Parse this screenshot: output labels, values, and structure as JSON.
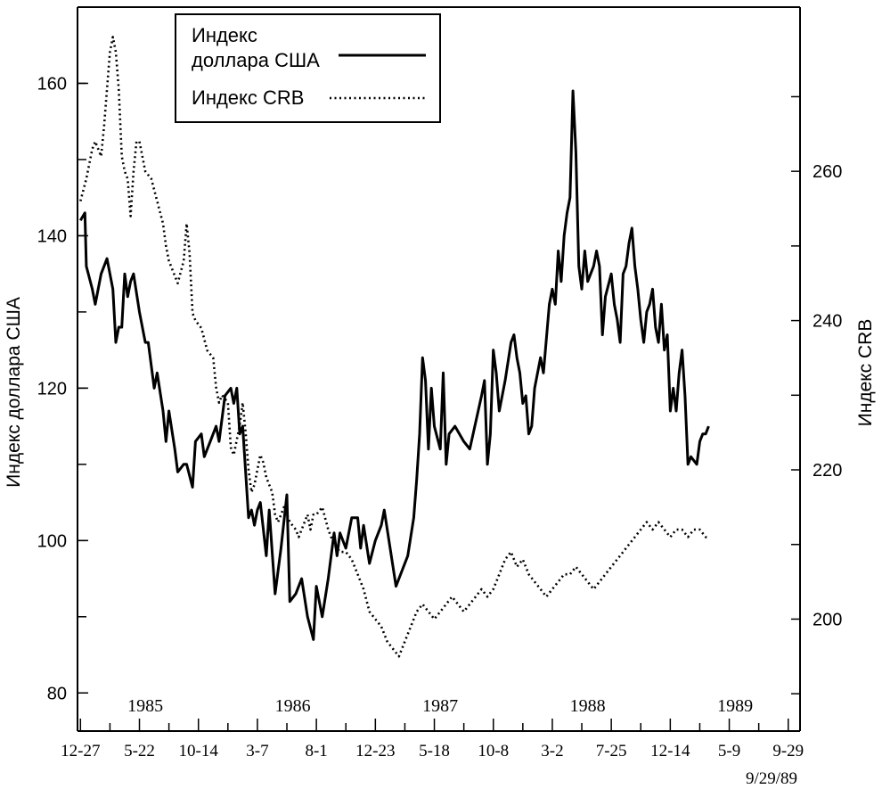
{
  "chart_data": {
    "type": "line",
    "title": "",
    "xlabel": "",
    "ylabel_left": "Индекс доллара США",
    "ylabel_right": "Индекс CRB",
    "ylim_left": [
      75,
      170
    ],
    "ylim_right": [
      185,
      282
    ],
    "yticks_left": [
      80,
      100,
      120,
      140,
      160
    ],
    "yticks_right": [
      200,
      220,
      240,
      260
    ],
    "x_tick_labels": [
      "12-27",
      "5-22",
      "10-14",
      "3-7",
      "8-1",
      "12-23",
      "5-18",
      "10-8",
      "3-2",
      "7-25",
      "12-14",
      "5-9",
      "9-29"
    ],
    "x_tick_positions": [
      0,
      20,
      40,
      60,
      80,
      100,
      120,
      140,
      160,
      180,
      200,
      220,
      240
    ],
    "year_labels": [
      {
        "label": "1985",
        "x": 22
      },
      {
        "label": "1986",
        "x": 72
      },
      {
        "label": "1987",
        "x": 122
      },
      {
        "label": "1988",
        "x": 172
      },
      {
        "label": "1989",
        "x": 222
      }
    ],
    "date_note": "9/29/89",
    "xlim": [
      -1,
      244
    ],
    "legend": {
      "position": "top-left",
      "entries": [
        "Индекс доллара США",
        "Индекс CRB"
      ]
    },
    "legend_lines": [
      "Индекс",
      "доллара США"
    ],
    "series": [
      {
        "name": "Индекс доллара США",
        "axis": "left",
        "style": "solid",
        "points": [
          [
            0,
            142
          ],
          [
            1.5,
            143
          ],
          [
            2,
            136
          ],
          [
            4,
            133
          ],
          [
            5,
            131
          ],
          [
            7,
            135
          ],
          [
            9,
            137
          ],
          [
            11,
            133
          ],
          [
            12,
            126
          ],
          [
            13,
            128
          ],
          [
            14,
            128
          ],
          [
            15,
            135
          ],
          [
            16,
            132
          ],
          [
            17,
            134
          ],
          [
            18,
            135
          ],
          [
            20,
            130
          ],
          [
            22,
            126
          ],
          [
            23,
            126
          ],
          [
            25,
            120
          ],
          [
            26,
            122
          ],
          [
            28,
            117
          ],
          [
            29,
            113
          ],
          [
            30,
            117
          ],
          [
            32,
            112
          ],
          [
            33,
            109
          ],
          [
            35,
            110
          ],
          [
            36,
            110
          ],
          [
            38,
            107
          ],
          [
            39,
            113
          ],
          [
            41,
            114
          ],
          [
            42,
            111
          ],
          [
            44,
            113
          ],
          [
            46,
            115
          ],
          [
            47,
            113
          ],
          [
            49,
            119
          ],
          [
            51,
            120
          ],
          [
            52,
            118
          ],
          [
            53,
            120
          ],
          [
            54,
            114
          ],
          [
            55,
            115
          ],
          [
            57,
            103
          ],
          [
            58,
            104
          ],
          [
            59,
            102
          ],
          [
            60,
            104
          ],
          [
            61,
            105
          ],
          [
            63,
            98
          ],
          [
            64,
            104
          ],
          [
            66,
            93
          ],
          [
            68,
            99
          ],
          [
            70,
            106
          ],
          [
            71,
            92
          ],
          [
            73,
            93
          ],
          [
            75,
            95
          ],
          [
            77,
            90
          ],
          [
            79,
            87
          ],
          [
            80,
            94
          ],
          [
            81,
            92
          ],
          [
            82,
            90
          ],
          [
            84,
            95
          ],
          [
            86,
            101
          ],
          [
            87,
            98
          ],
          [
            88,
            101
          ],
          [
            90,
            99
          ],
          [
            92,
            103
          ],
          [
            94,
            103
          ],
          [
            95,
            99
          ],
          [
            96,
            102
          ],
          [
            98,
            97
          ],
          [
            100,
            100
          ],
          [
            102,
            102
          ],
          [
            103,
            104
          ],
          [
            105,
            99
          ],
          [
            107,
            94
          ],
          [
            109,
            96
          ],
          [
            111,
            98
          ],
          [
            113,
            103
          ],
          [
            114,
            108
          ],
          [
            115,
            114
          ],
          [
            116,
            124
          ],
          [
            117,
            121
          ],
          [
            118,
            112
          ],
          [
            119,
            120
          ],
          [
            120,
            115
          ],
          [
            122,
            112
          ],
          [
            123,
            122
          ],
          [
            124,
            110
          ],
          [
            125,
            114
          ],
          [
            127,
            115
          ],
          [
            130,
            113
          ],
          [
            132,
            112
          ],
          [
            136,
            119
          ],
          [
            137,
            121
          ],
          [
            138,
            110
          ],
          [
            139,
            114
          ],
          [
            140,
            125
          ],
          [
            141,
            122
          ],
          [
            142,
            117
          ],
          [
            144,
            121
          ],
          [
            146,
            126
          ],
          [
            147,
            127
          ],
          [
            148,
            124
          ],
          [
            149,
            122
          ],
          [
            150,
            118
          ],
          [
            151,
            119
          ],
          [
            152,
            114
          ],
          [
            153,
            115
          ],
          [
            154,
            120
          ],
          [
            156,
            124
          ],
          [
            157,
            122
          ],
          [
            159,
            131
          ],
          [
            160,
            133
          ],
          [
            161,
            131
          ],
          [
            162,
            138
          ],
          [
            163,
            134
          ],
          [
            164,
            140
          ],
          [
            165,
            143
          ],
          [
            166,
            145
          ],
          [
            167,
            159
          ],
          [
            168,
            151
          ],
          [
            169,
            136
          ],
          [
            170,
            133
          ],
          [
            171,
            138
          ],
          [
            172,
            134
          ],
          [
            174,
            136
          ],
          [
            175,
            138
          ],
          [
            176,
            136
          ],
          [
            177,
            127
          ],
          [
            178,
            132
          ],
          [
            180,
            135
          ],
          [
            181,
            131
          ],
          [
            182,
            129
          ],
          [
            183,
            126
          ],
          [
            184,
            135
          ],
          [
            185,
            136
          ],
          [
            186,
            139
          ],
          [
            187,
            141
          ],
          [
            188,
            136
          ],
          [
            189,
            133
          ],
          [
            190,
            129
          ],
          [
            191,
            126
          ],
          [
            192,
            130
          ],
          [
            193,
            131
          ],
          [
            194,
            133
          ],
          [
            195,
            128
          ],
          [
            196,
            126
          ],
          [
            197,
            131
          ],
          [
            198,
            125
          ],
          [
            199,
            127
          ],
          [
            200,
            117
          ],
          [
            201,
            120
          ],
          [
            202,
            117
          ],
          [
            203,
            122
          ],
          [
            204,
            125
          ],
          [
            205,
            119
          ],
          [
            206,
            110
          ],
          [
            207,
            111
          ],
          [
            209,
            110
          ],
          [
            210,
            113
          ],
          [
            211,
            114
          ],
          [
            212,
            114
          ],
          [
            213,
            115
          ]
        ]
      },
      {
        "name": "Индекс CRB",
        "axis": "right",
        "style": "dotted",
        "points": [
          [
            0,
            256
          ],
          [
            2,
            259
          ],
          [
            4,
            263
          ],
          [
            5,
            264
          ],
          [
            7,
            262
          ],
          [
            8,
            266
          ],
          [
            9,
            271
          ],
          [
            10,
            276
          ],
          [
            11,
            278
          ],
          [
            12,
            276
          ],
          [
            13,
            271
          ],
          [
            14,
            262
          ],
          [
            15,
            260
          ],
          [
            16,
            259
          ],
          [
            17,
            254
          ],
          [
            18,
            260
          ],
          [
            19,
            264
          ],
          [
            20,
            264
          ],
          [
            21,
            262
          ],
          [
            22,
            260
          ],
          [
            24,
            259
          ],
          [
            26,
            256
          ],
          [
            28,
            253
          ],
          [
            29,
            250
          ],
          [
            30,
            248
          ],
          [
            32,
            246
          ],
          [
            33,
            245
          ],
          [
            35,
            248
          ],
          [
            36,
            253
          ],
          [
            37,
            249
          ],
          [
            38,
            241
          ],
          [
            39,
            240
          ],
          [
            41,
            239
          ],
          [
            43,
            236
          ],
          [
            45,
            235
          ],
          [
            46,
            231
          ],
          [
            47,
            229
          ],
          [
            48,
            230
          ],
          [
            50,
            229
          ],
          [
            51,
            223
          ],
          [
            52,
            222
          ],
          [
            54,
            226
          ],
          [
            55,
            229
          ],
          [
            56,
            225
          ],
          [
            57,
            220
          ],
          [
            58,
            217
          ],
          [
            59,
            218
          ],
          [
            60,
            220
          ],
          [
            61,
            222
          ],
          [
            62,
            221
          ],
          [
            63,
            219
          ],
          [
            64,
            218
          ],
          [
            65,
            217
          ],
          [
            66,
            214
          ],
          [
            67,
            213
          ],
          [
            69,
            215
          ],
          [
            70,
            214
          ],
          [
            71,
            213
          ],
          [
            73,
            212
          ],
          [
            74,
            211
          ],
          [
            76,
            213
          ],
          [
            77,
            214
          ],
          [
            78,
            212
          ],
          [
            79,
            214
          ],
          [
            80,
            214
          ],
          [
            82,
            215
          ],
          [
            84,
            212
          ],
          [
            86,
            210
          ],
          [
            88,
            209
          ],
          [
            90,
            209
          ],
          [
            92,
            208
          ],
          [
            94,
            206
          ],
          [
            96,
            204
          ],
          [
            98,
            201
          ],
          [
            100,
            200
          ],
          [
            102,
            199
          ],
          [
            104,
            197
          ],
          [
            106,
            196
          ],
          [
            108,
            195
          ],
          [
            110,
            197
          ],
          [
            112,
            199
          ],
          [
            114,
            201
          ],
          [
            116,
            202
          ],
          [
            118,
            201
          ],
          [
            120,
            200
          ],
          [
            122,
            201
          ],
          [
            124,
            202
          ],
          [
            126,
            203
          ],
          [
            128,
            202
          ],
          [
            130,
            201
          ],
          [
            132,
            202
          ],
          [
            134,
            203
          ],
          [
            136,
            204
          ],
          [
            138,
            203
          ],
          [
            140,
            204
          ],
          [
            142,
            206
          ],
          [
            144,
            208
          ],
          [
            146,
            209
          ],
          [
            148,
            207
          ],
          [
            150,
            208
          ],
          [
            152,
            206
          ],
          [
            154,
            205
          ],
          [
            156,
            204
          ],
          [
            158,
            203
          ],
          [
            160,
            204
          ],
          [
            162,
            205
          ],
          [
            164,
            206
          ],
          [
            166,
            206
          ],
          [
            168,
            207
          ],
          [
            170,
            206
          ],
          [
            172,
            205
          ],
          [
            174,
            204
          ],
          [
            176,
            205
          ],
          [
            178,
            206
          ],
          [
            180,
            207
          ],
          [
            182,
            208
          ],
          [
            184,
            209
          ],
          [
            186,
            210
          ],
          [
            188,
            211
          ],
          [
            190,
            212
          ],
          [
            192,
            213
          ],
          [
            194,
            212
          ],
          [
            196,
            213
          ],
          [
            198,
            212
          ],
          [
            200,
            211
          ],
          [
            202,
            212
          ],
          [
            204,
            212
          ],
          [
            206,
            211
          ],
          [
            208,
            212
          ],
          [
            210,
            212
          ],
          [
            212,
            211
          ],
          [
            213,
            211
          ]
        ]
      }
    ]
  }
}
